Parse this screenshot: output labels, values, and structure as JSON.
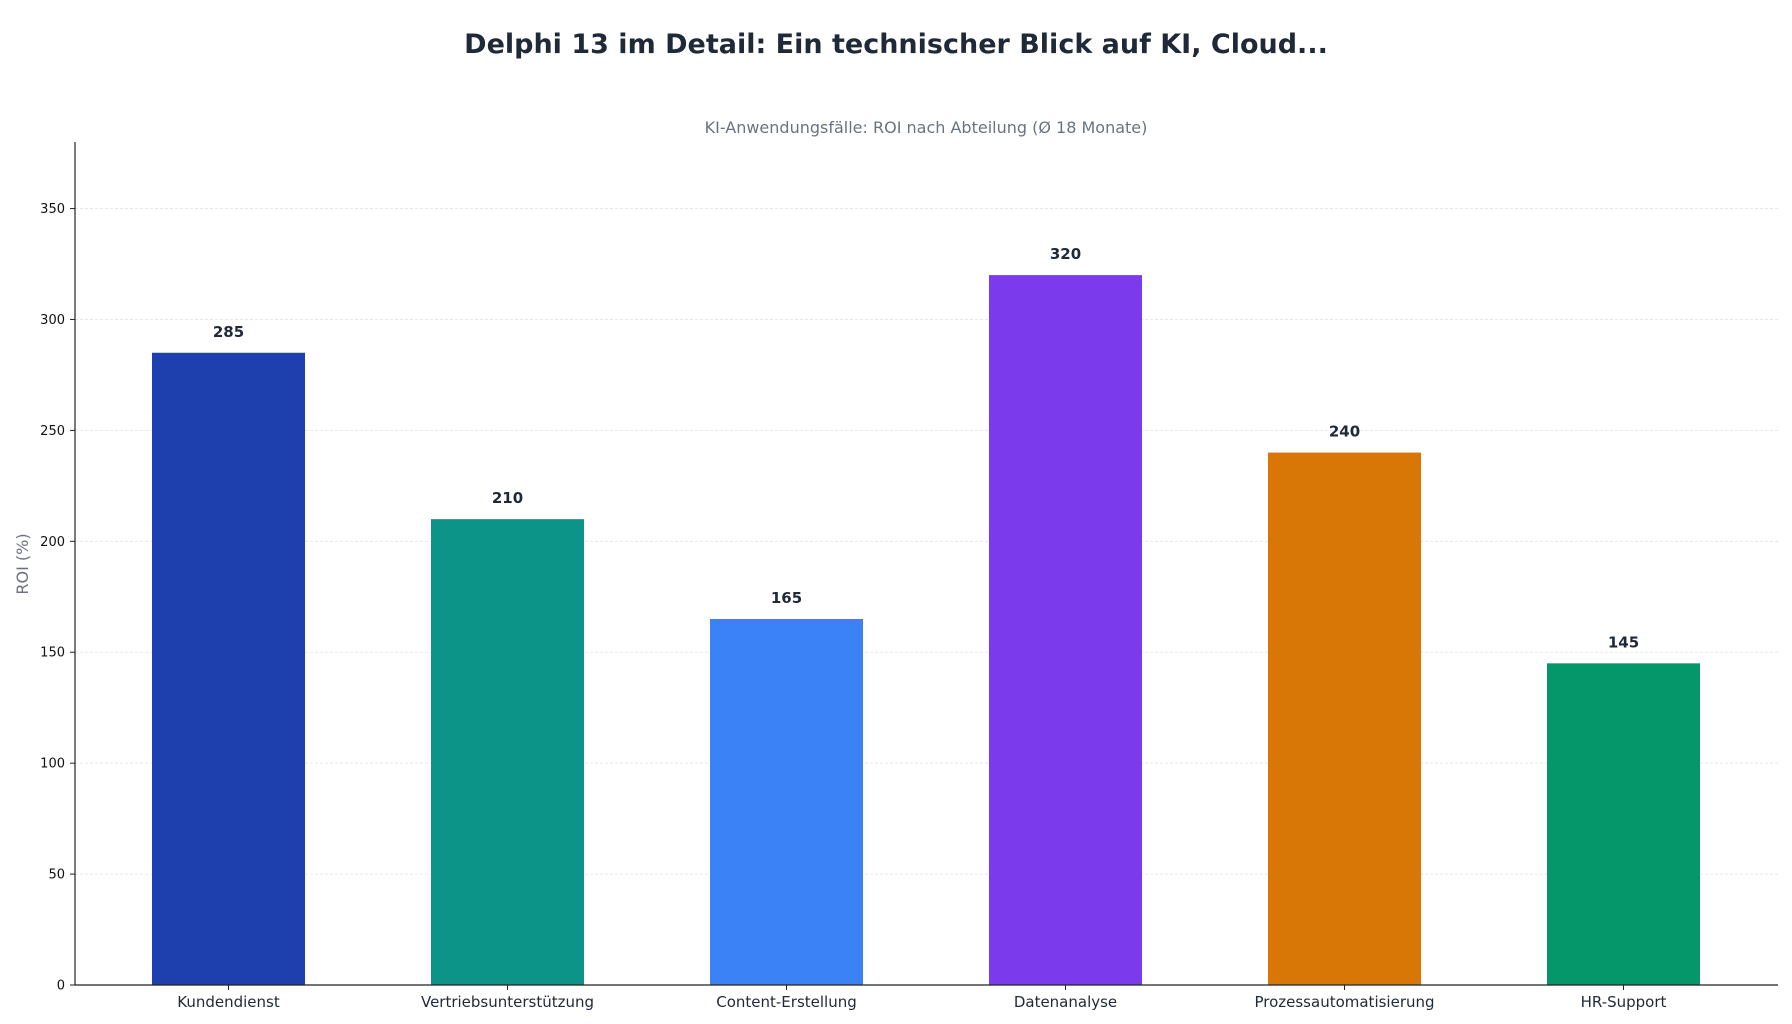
{
  "chart_data": {
    "type": "bar",
    "title": "Delphi 13 im Detail: Ein technischer Blick auf KI, Cloud...",
    "subtitle": "KI-Anwendungsfälle: ROI nach Abteilung (Ø 18 Monate)",
    "xlabel": "",
    "ylabel": "ROI (%)",
    "categories": [
      "Kundendienst",
      "Vertriebsunterstützung",
      "Content-Erstellung",
      "Datenanalyse",
      "Prozessautomatisierung",
      "HR-Support"
    ],
    "values": [
      285,
      210,
      165,
      320,
      240,
      145
    ],
    "value_labels": [
      "285",
      "210",
      "165",
      "320",
      "240",
      "145"
    ],
    "colors": [
      "#1e40af",
      "#0d9488",
      "#3b82f6",
      "#7c3aed",
      "#d97706",
      "#059669"
    ],
    "ylim": [
      0,
      380
    ],
    "yticks": [
      0,
      50,
      100,
      150,
      200,
      250,
      300,
      350
    ],
    "grid": true,
    "legend": "none"
  }
}
